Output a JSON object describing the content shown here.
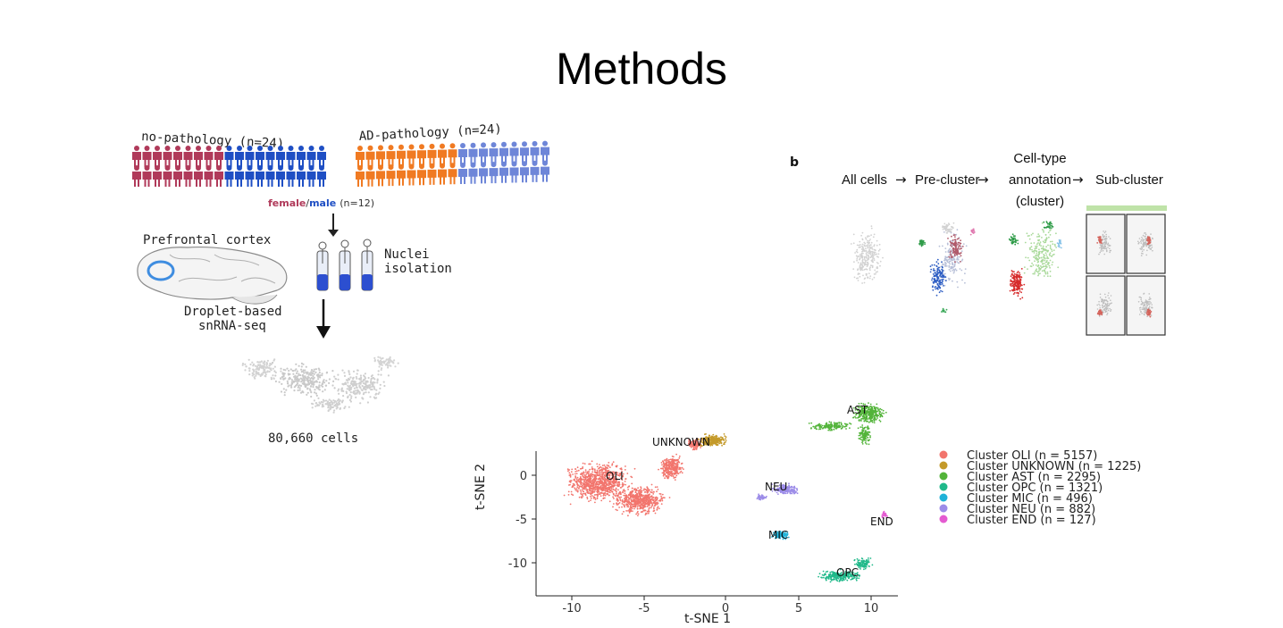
{
  "slide": {
    "title": "Methods"
  },
  "panel_a": {
    "group_no_pathology": "no-pathology (n=24)",
    "group_ad_pathology": "AD-pathology (n=24)",
    "sex_female": "female",
    "sex_slash": "/",
    "sex_male": "male",
    "sex_count": "(n=12)",
    "region": "Prefrontal cortex",
    "step_nuclei_line1": "Nuclei",
    "step_nuclei_line2": "isolation",
    "step_seq_line1": "Droplet-based",
    "step_seq_line2": "snRNA-seq",
    "cell_count": "80,660 cells",
    "colors": {
      "female_no": "#b03a5a",
      "male_no": "#1f4fc4",
      "female_ad": "#f07a22",
      "male_ad": "#6e86d8"
    }
  },
  "panel_b": {
    "label": "b",
    "step1": "All cells",
    "step2": "Pre-cluster",
    "step3_line1": "Cell-type",
    "step3_line2": "annotation",
    "step3_line3": "(cluster)",
    "step4": "Sub-cluster",
    "arrow": "→"
  },
  "panel_c": {
    "xlabel": "t-SNE 1",
    "ylabel": "t-SNE 2",
    "xticks": [
      "-10",
      "-5",
      "0",
      "5",
      "10"
    ],
    "yticks": [
      "0",
      "-5",
      "-10"
    ],
    "legend": [
      {
        "label": "Cluster OLI (n = 5157)",
        "color": "#f2756d"
      },
      {
        "label": "Cluster UNKNOWN (n = 1225)",
        "color": "#c49a2a"
      },
      {
        "label": "Cluster AST (n = 2295)",
        "color": "#53b43a"
      },
      {
        "label": "Cluster OPC (n = 1321)",
        "color": "#20b98a"
      },
      {
        "label": "Cluster MIC (n = 496)",
        "color": "#1fb2d8"
      },
      {
        "label": "Cluster NEU (n = 882)",
        "color": "#9c8ce8"
      },
      {
        "label": "Cluster END (n = 127)",
        "color": "#e45bd1"
      }
    ],
    "cluster_labels": {
      "oli": "OLI",
      "unknown": "UNKNOWN",
      "ast": "AST",
      "neu": "NEU",
      "mic": "MIC",
      "opc": "OPC",
      "end": "END"
    }
  }
}
